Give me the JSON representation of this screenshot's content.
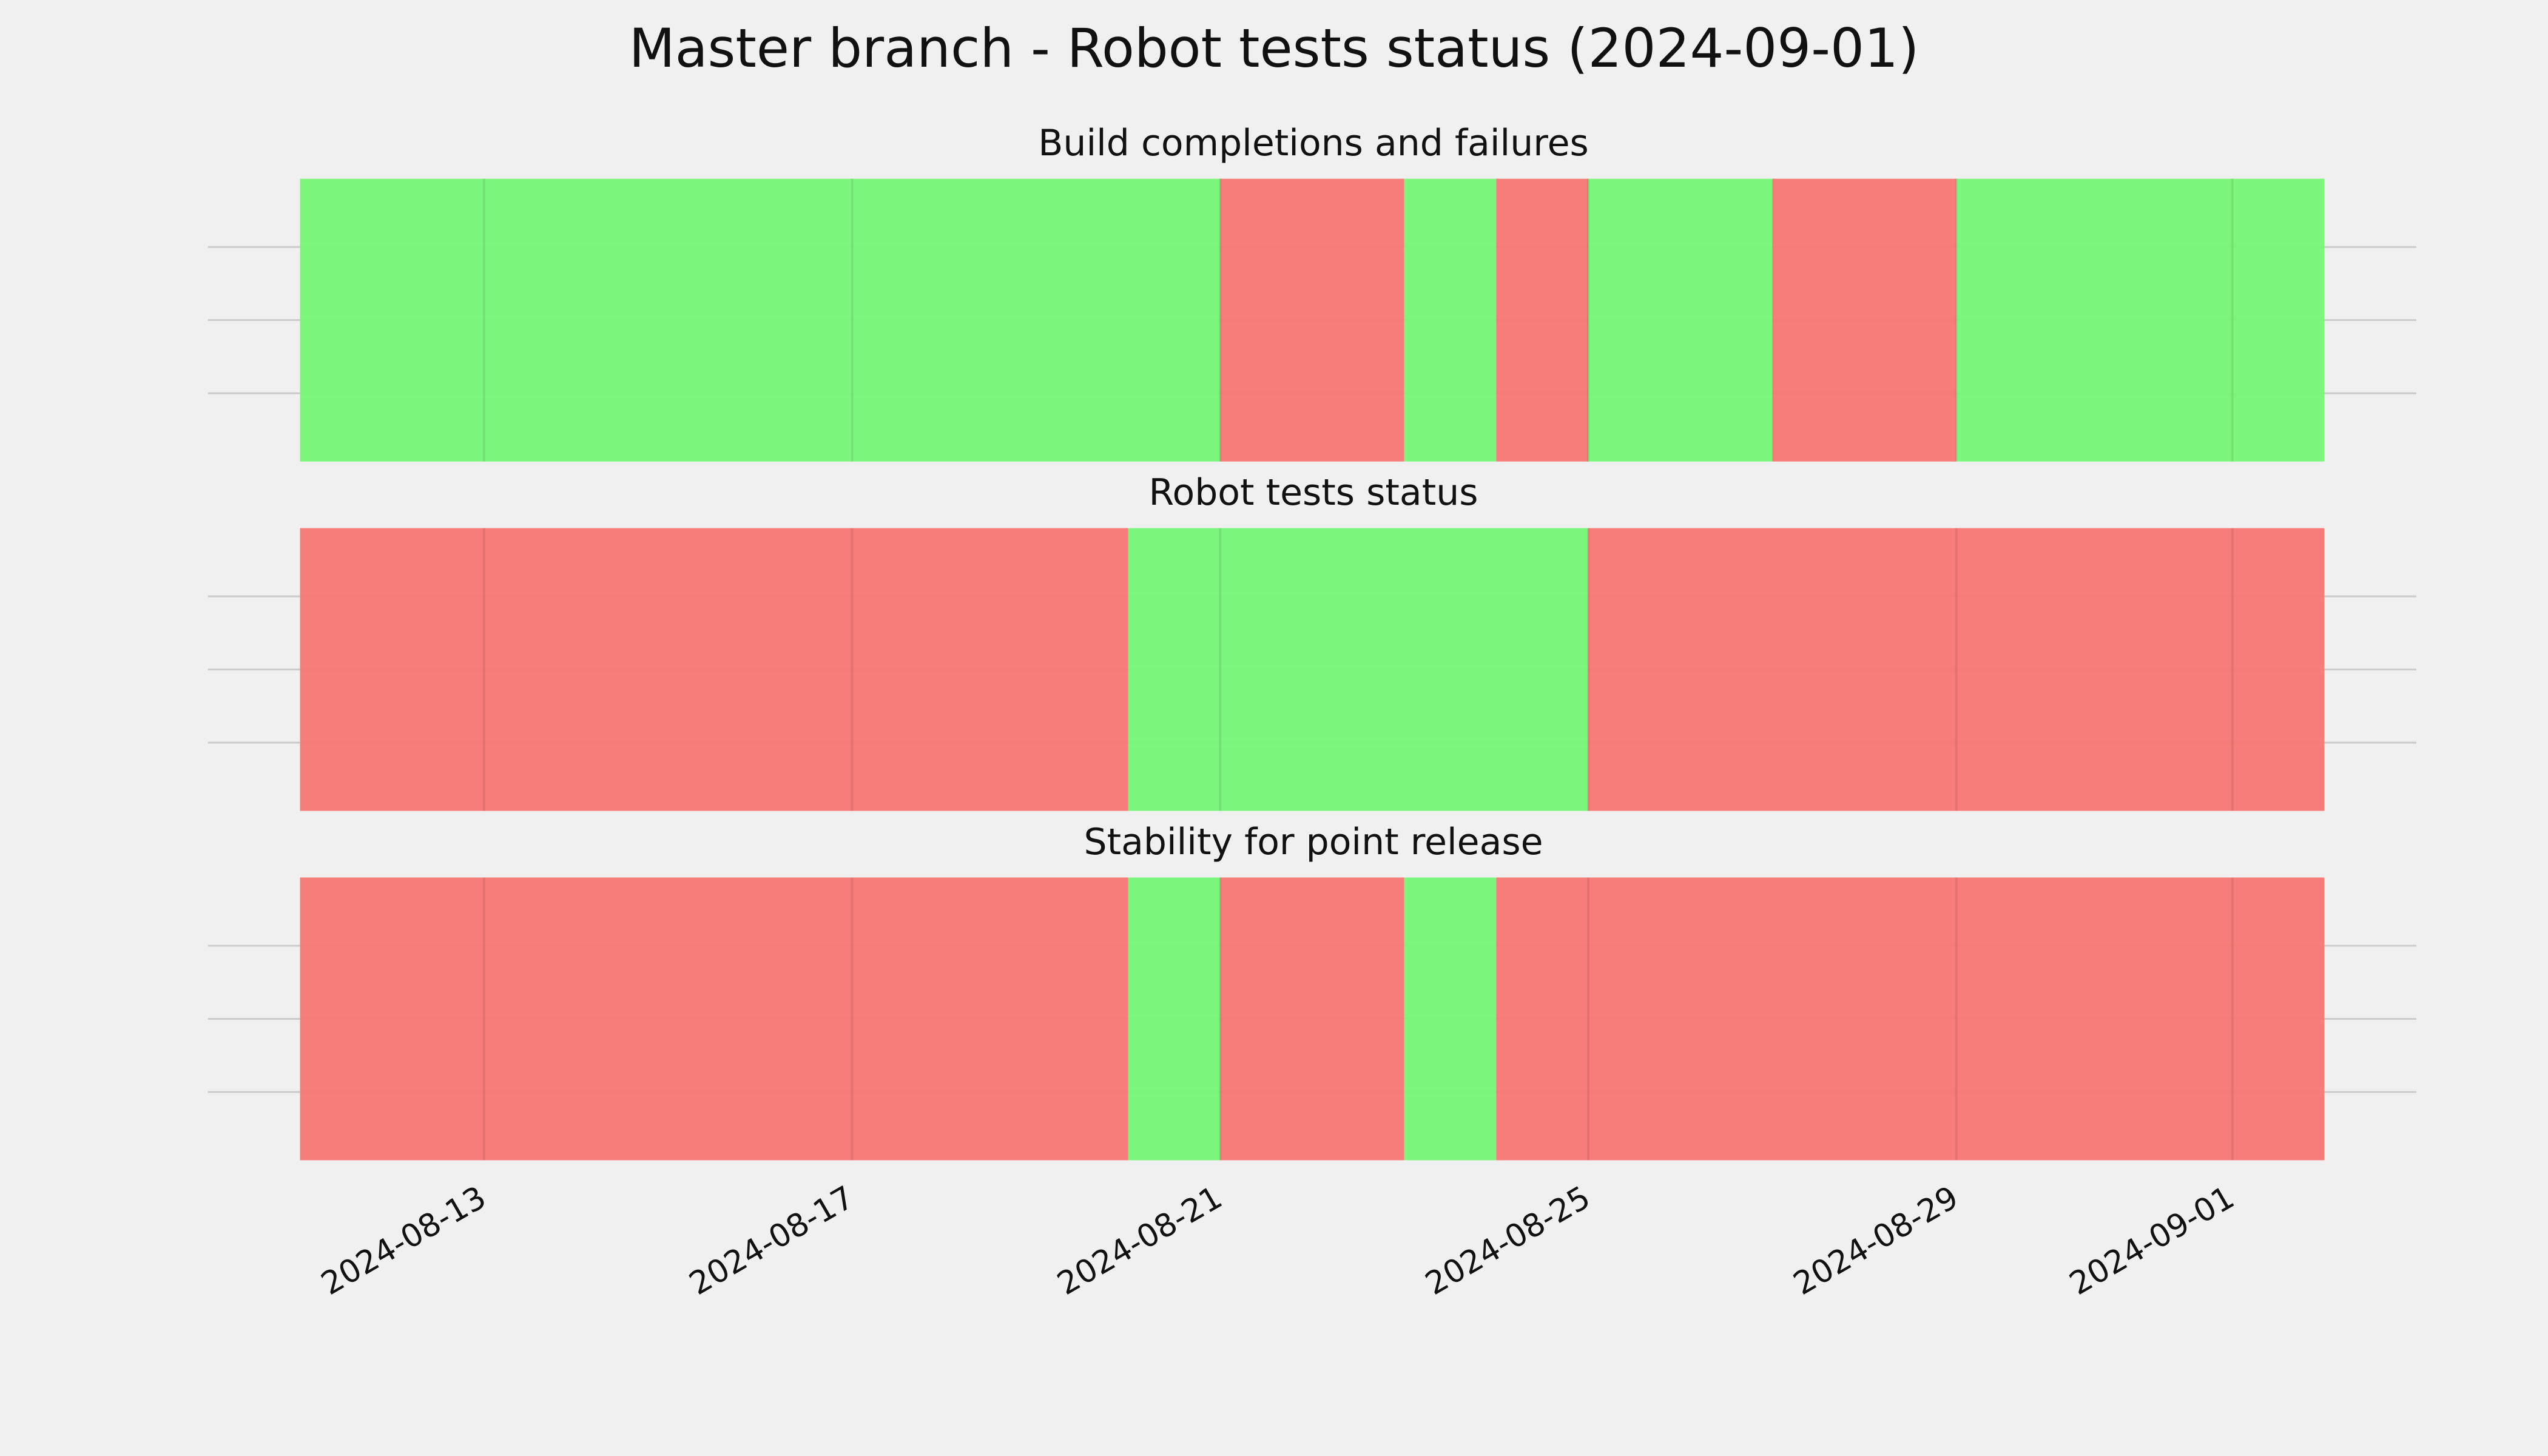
{
  "chart_data": {
    "type": "timeline",
    "title": "Master branch - Robot tests status (2024-09-01)",
    "xlim": [
      "2024-08-10",
      "2024-09-03"
    ],
    "xticks": [
      "2024-08-13",
      "2024-08-17",
      "2024-08-21",
      "2024-08-25",
      "2024-08-29",
      "2024-09-01"
    ],
    "grid": true,
    "panels": [
      {
        "title": "Build completions and failures",
        "segments": [
          {
            "start": "2024-08-11",
            "end": "2024-08-21",
            "color": "#76f576"
          },
          {
            "start": "2024-08-21",
            "end": "2024-08-23",
            "color": "#f77673"
          },
          {
            "start": "2024-08-23",
            "end": "2024-08-24",
            "color": "#76f576"
          },
          {
            "start": "2024-08-24",
            "end": "2024-08-25",
            "color": "#f77673"
          },
          {
            "start": "2024-08-25",
            "end": "2024-08-27",
            "color": "#76f576"
          },
          {
            "start": "2024-08-27",
            "end": "2024-08-29",
            "color": "#f77673"
          },
          {
            "start": "2024-08-29",
            "end": "2024-09-02",
            "color": "#76f576"
          }
        ]
      },
      {
        "title": "Robot tests status",
        "segments": [
          {
            "start": "2024-08-11",
            "end": "2024-08-20",
            "color": "#f77673"
          },
          {
            "start": "2024-08-20",
            "end": "2024-08-25",
            "color": "#76f576"
          },
          {
            "start": "2024-08-25",
            "end": "2024-09-02",
            "color": "#f77673"
          }
        ]
      },
      {
        "title": "Stability for point release",
        "segments": [
          {
            "start": "2024-08-11",
            "end": "2024-08-20",
            "color": "#f77673"
          },
          {
            "start": "2024-08-20",
            "end": "2024-08-21",
            "color": "#76f576"
          },
          {
            "start": "2024-08-21",
            "end": "2024-08-23",
            "color": "#f77673"
          },
          {
            "start": "2024-08-23",
            "end": "2024-08-24",
            "color": "#76f576"
          },
          {
            "start": "2024-08-24",
            "end": "2024-09-02",
            "color": "#f77673"
          }
        ]
      }
    ]
  }
}
